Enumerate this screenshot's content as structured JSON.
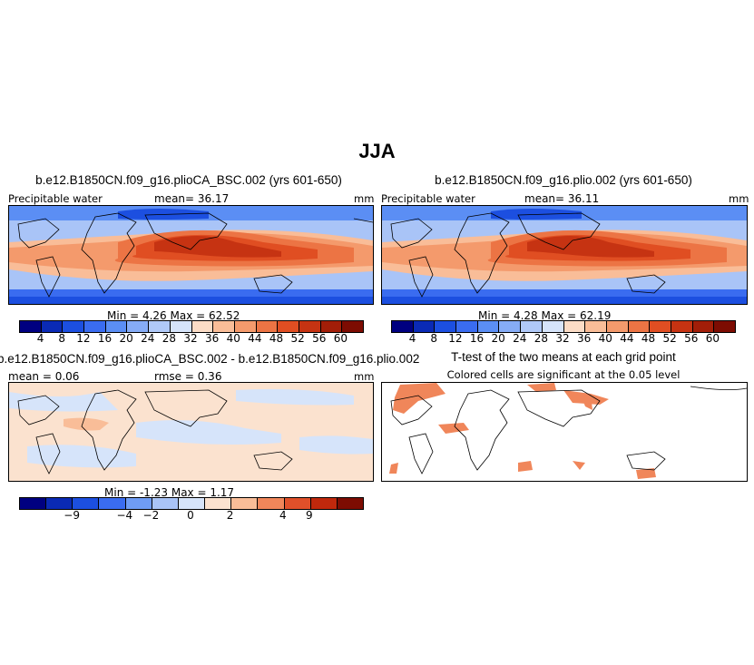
{
  "figure": {
    "title": "JJA",
    "panels": {
      "top_left": {
        "title": "b.e12.B1850CN.f09_g16.plioCA_BSC.002 (yrs 601-650)",
        "variable": "Precipitable water",
        "mean": "mean=  36.17",
        "units": "mm",
        "minmax": "Min =    4.26  Max =   62.52"
      },
      "top_right": {
        "title": "b.e12.B1850CN.f09_g16.plio.002 (yrs 601-650)",
        "variable": "Precipitable water",
        "mean": "mean=  36.11",
        "units": "mm",
        "minmax": "Min =    4.28  Max =   62.19"
      },
      "bottom_left": {
        "title": "b.e12.B1850CN.f09_g16.plioCA_BSC.002 - b.e12.B1850CN.f09_g16.plio.002",
        "mean": "mean =  0.06",
        "rmse": "rmse =   0.36",
        "units": "mm",
        "minmax": "Min =  -1.23  Max =   1.17"
      },
      "bottom_right": {
        "title": "T-test of the two means at each grid point",
        "subtitle": "Colored cells are significant at the 0.05 level"
      }
    },
    "colorbar_abs": {
      "colors": [
        "#000080",
        "#0a2ab5",
        "#1c4fe0",
        "#3a6cf0",
        "#5b8ef4",
        "#86acf6",
        "#b0c9f8",
        "#d6e4fa",
        "#fbdcc6",
        "#f9bd98",
        "#f49a6c",
        "#ec7444",
        "#e04e22",
        "#c63312",
        "#a21e08",
        "#7d0c02"
      ],
      "labels": [
        "4",
        "8",
        "12",
        "16",
        "20",
        "24",
        "28",
        "32",
        "36",
        "40",
        "44",
        "48",
        "52",
        "56",
        "60"
      ]
    },
    "colorbar_diff": {
      "colors": [
        "#000080",
        "#0a2ab5",
        "#1c4fe0",
        "#3a6cf0",
        "#6f9cf4",
        "#a9c4f7",
        "#d6e4fa",
        "#fbe2cf",
        "#f9bd98",
        "#f0865a",
        "#e0502a",
        "#c0280c",
        "#7d0c02"
      ],
      "labels": [
        "-9",
        "-4",
        "-2",
        "0",
        "2",
        "4",
        "9"
      ]
    }
  }
}
